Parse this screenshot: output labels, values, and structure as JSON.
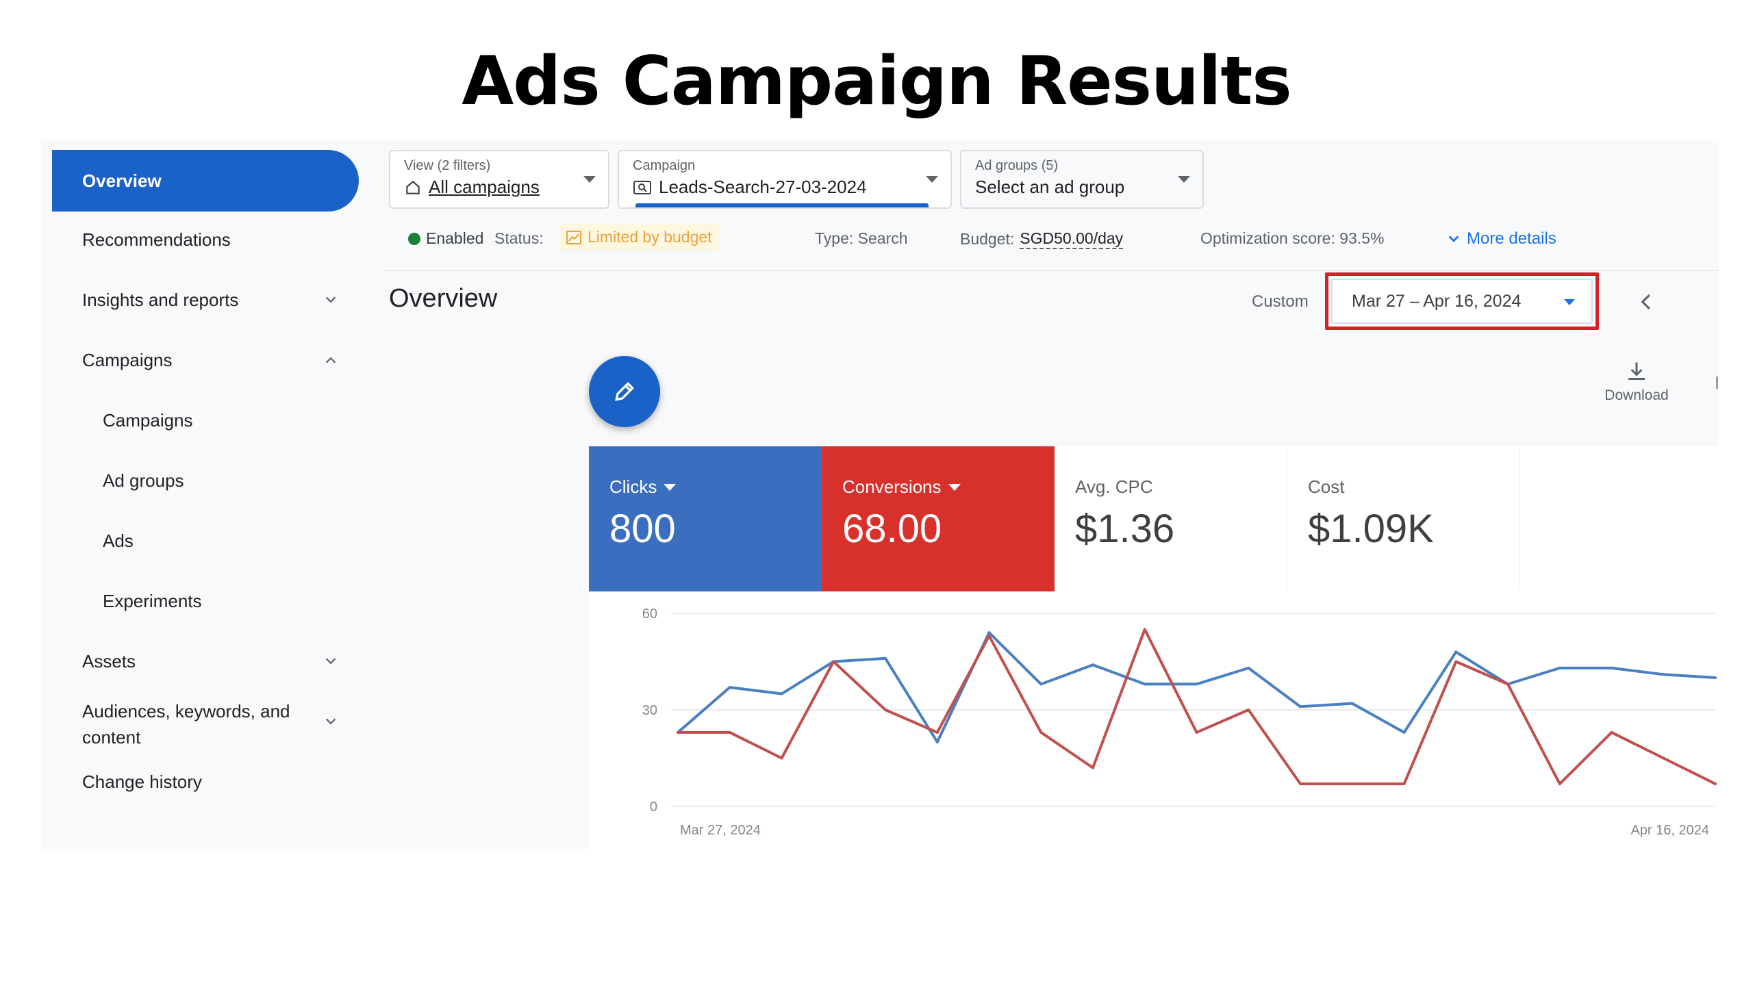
{
  "slide_title": "Ads Campaign Results",
  "sidebar": {
    "active_item": "Overview",
    "items": [
      {
        "label": "Recommendations"
      },
      {
        "label": "Insights and reports",
        "icon": "chevron-down-icon"
      },
      {
        "label": "Campaigns",
        "icon": "chevron-up-icon"
      },
      {
        "label": "Campaigns"
      },
      {
        "label": "Ad groups"
      },
      {
        "label": "Ads"
      },
      {
        "label": "Experiments"
      },
      {
        "label": "Assets",
        "icon": "chevron-down-icon"
      },
      {
        "label_line1": "Audiences, keywords, and",
        "label_line2": "content",
        "icon": "chevron-down-icon"
      },
      {
        "label": "Change history"
      }
    ]
  },
  "filters": {
    "view": {
      "caption": "View (2 filters)",
      "value": "All campaigns",
      "icon": "home-icon"
    },
    "campaign": {
      "caption": "Campaign",
      "value": "Leads-Search-27-03-2024",
      "icon": "search-campaign-icon"
    },
    "ad_groups": {
      "caption": "Ad groups (5)",
      "value": "Select an ad group"
    }
  },
  "status_bar": {
    "enabled": "Enabled",
    "status_label": "Status:",
    "status_value": "Limited by budget",
    "type": "Type: Search",
    "budget_label": "Budget:",
    "budget_value": "SGD50.00/day",
    "optimization": "Optimization score: 93.5%",
    "more_details": "More details"
  },
  "overview": {
    "heading": "Overview",
    "custom_label": "Custom",
    "date_range": "Mar 27 – Apr 16, 2024",
    "download_label": "Download"
  },
  "metrics": [
    {
      "label": "Clicks",
      "value": "800",
      "color": "#3c6fbd"
    },
    {
      "label": "Conversions",
      "value": "68.00",
      "color": "#d93025"
    },
    {
      "label": "Avg. CPC",
      "value": "$1.36"
    },
    {
      "label": "Cost",
      "value": "$1.09K"
    }
  ],
  "colors": {
    "primary": "#1b62c8",
    "clicks_line": "#4a7fc1",
    "conversions_line": "#c0504d",
    "highlight": "#d61f26"
  },
  "chart_data": {
    "type": "line",
    "x_start_label": "Mar 27, 2024",
    "x_end_label": "Apr 16, 2024",
    "x": [
      "Mar 27",
      "Mar 28",
      "Mar 29",
      "Mar 30",
      "Mar 31",
      "Apr 1",
      "Apr 2",
      "Apr 3",
      "Apr 4",
      "Apr 5",
      "Apr 6",
      "Apr 7",
      "Apr 8",
      "Apr 9",
      "Apr 10",
      "Apr 11",
      "Apr 12",
      "Apr 13",
      "Apr 14",
      "Apr 15",
      "Apr 16"
    ],
    "yticks": [
      "60",
      "30",
      "0"
    ],
    "ylim": [
      0,
      60
    ],
    "grid": true,
    "series": [
      {
        "key": "Clicks",
        "color": "#4a7fc1",
        "values": [
          23,
          37,
          35,
          45,
          46,
          20,
          54,
          38,
          44,
          38,
          38,
          43,
          31,
          32,
          23,
          48,
          38,
          43,
          43,
          41,
          40
        ]
      },
      {
        "key": "Conversions",
        "color": "#c0504d",
        "values": [
          23,
          23,
          15,
          45,
          30,
          23,
          53,
          23,
          12,
          55,
          23,
          30,
          7,
          7,
          7,
          45,
          38,
          7,
          23,
          15,
          7
        ]
      }
    ]
  }
}
